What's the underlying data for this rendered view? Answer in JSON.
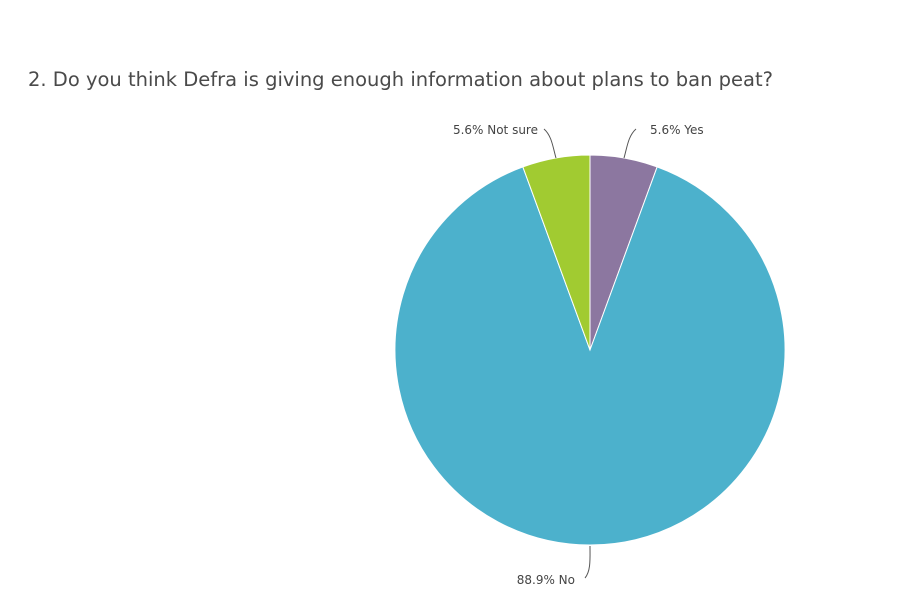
{
  "question": {
    "title": "2. Do you think Defra is giving enough information about plans to ban peat?"
  },
  "chart_data": {
    "type": "pie",
    "start": "12 o'clock, clockwise",
    "slices": [
      {
        "label": "Yes",
        "value": 5.6,
        "display": "5.6% Yes",
        "color": "#8c77a0"
      },
      {
        "label": "No",
        "value": 88.9,
        "display": "88.9% No",
        "color": "#4cb1cc"
      },
      {
        "label": "Not sure",
        "value": 5.6,
        "display": "5.6% Not sure",
        "color": "#a1cb31"
      }
    ]
  }
}
